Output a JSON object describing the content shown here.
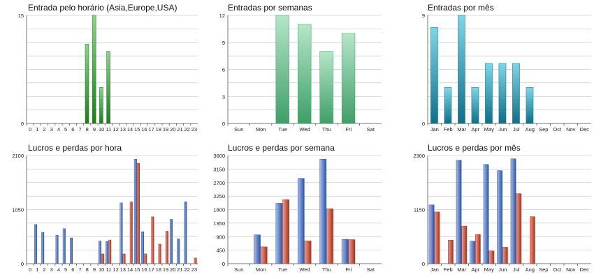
{
  "colors": {
    "green_light": "#8fd08f",
    "green_dark": "#1e7a1e",
    "mint_light": "#b5e6c8",
    "mint_dark": "#3f9f66",
    "teal_light": "#7fd6e6",
    "teal_dark": "#0f6f86",
    "blue_light": "#a9bde8",
    "blue_dark": "#2d55a6",
    "red_light": "#f0a090",
    "red_dark": "#a8321e"
  },
  "chart_data": [
    {
      "type": "bar",
      "title": "Entrada pelo horário (Asia,Europe,USA)",
      "categories": [
        "0",
        "1",
        "2",
        "3",
        "4",
        "5",
        "6",
        "7",
        "8",
        "9",
        "10",
        "11",
        "12",
        "13",
        "14",
        "15",
        "16",
        "17",
        "18",
        "19",
        "20",
        "21",
        "22",
        "23"
      ],
      "series": [
        {
          "values": [
            0,
            0,
            0,
            0,
            0,
            0,
            0,
            0,
            11,
            15,
            5,
            10,
            0,
            0,
            0,
            0,
            0,
            0,
            0,
            0,
            0,
            0,
            0,
            0
          ],
          "color": "green"
        }
      ],
      "ylim": [
        0,
        15
      ],
      "yticks": [
        "0",
        "15"
      ],
      "grid": true
    },
    {
      "type": "bar",
      "title": "Entradas por semanas",
      "categories": [
        "Sun",
        "Mon",
        "Tue",
        "Wed",
        "Thu",
        "Fri",
        "Sat"
      ],
      "series": [
        {
          "values": [
            0,
            0,
            12,
            11,
            8,
            10,
            0
          ],
          "color": "mint"
        }
      ],
      "ylim": [
        0,
        12
      ],
      "yticks": [
        "0",
        "3",
        "6",
        "9",
        "12"
      ],
      "grid": true
    },
    {
      "type": "bar",
      "title": "Entradas por mês",
      "categories": [
        "Jan",
        "Feb",
        "Mar",
        "Apr",
        "May",
        "Jun",
        "Jul",
        "Aug",
        "Sep",
        "Oct",
        "Nov",
        "Dec"
      ],
      "series": [
        {
          "values": [
            8,
            3,
            9,
            3,
            5,
            5,
            5,
            3,
            0,
            0,
            0,
            0
          ],
          "color": "teal"
        }
      ],
      "ylim": [
        0,
        9
      ],
      "yticks": [
        "0",
        "9"
      ],
      "grid": true
    },
    {
      "type": "bar",
      "title": "Lucros e perdas por hora",
      "categories": [
        "0",
        "1",
        "2",
        "3",
        "4",
        "5",
        "6",
        "7",
        "8",
        "9",
        "10",
        "11",
        "12",
        "13",
        "14",
        "15",
        "16",
        "17",
        "18",
        "19",
        "20",
        "21",
        "22",
        "23"
      ],
      "series": [
        {
          "values": [
            0,
            760,
            610,
            0,
            550,
            680,
            500,
            0,
            0,
            0,
            440,
            430,
            0,
            1180,
            0,
            2030,
            620,
            0,
            0,
            0,
            860,
            480,
            1200,
            0
          ],
          "color": "blue"
        },
        {
          "values": [
            0,
            0,
            0,
            0,
            0,
            0,
            0,
            0,
            0,
            0,
            190,
            460,
            0,
            190,
            1200,
            1950,
            190,
            910,
            380,
            630,
            0,
            0,
            0,
            110
          ],
          "color": "red"
        }
      ],
      "ylim": [
        0,
        2100
      ],
      "yticks": [
        "0",
        "1050",
        "2100"
      ],
      "grid": true
    },
    {
      "type": "bar",
      "title": "Lucros e perdas por semana",
      "categories": [
        "Sun",
        "Mon",
        "Tue",
        "Wed",
        "Thu",
        "Fri",
        "Sat"
      ],
      "series": [
        {
          "values": [
            0,
            960,
            2010,
            2840,
            3480,
            810,
            0
          ],
          "color": "blue"
        },
        {
          "values": [
            0,
            560,
            2130,
            760,
            1830,
            800,
            0
          ],
          "color": "red"
        }
      ],
      "ylim": [
        0,
        3600
      ],
      "yticks": [
        "0",
        "450",
        "900",
        "1350",
        "1800",
        "2250",
        "2700",
        "3150",
        "3600"
      ],
      "grid": true
    },
    {
      "type": "bar",
      "title": "Lucros e perdas por mês",
      "categories": [
        "Jan",
        "Feb",
        "Mar",
        "Apr",
        "May",
        "Jun",
        "Jul",
        "Aug",
        "Sep",
        "Oct",
        "Nov",
        "Dec"
      ],
      "series": [
        {
          "values": [
            1250,
            0,
            2200,
            480,
            2110,
            1980,
            2230,
            0,
            0,
            0,
            0,
            0
          ],
          "color": "blue"
        },
        {
          "values": [
            1100,
            500,
            800,
            620,
            270,
            350,
            1490,
            1000,
            0,
            0,
            0,
            0
          ],
          "color": "red"
        }
      ],
      "ylim": [
        0,
        2300
      ],
      "yticks": [
        "0",
        "1150",
        "2300"
      ],
      "grid": true
    }
  ]
}
